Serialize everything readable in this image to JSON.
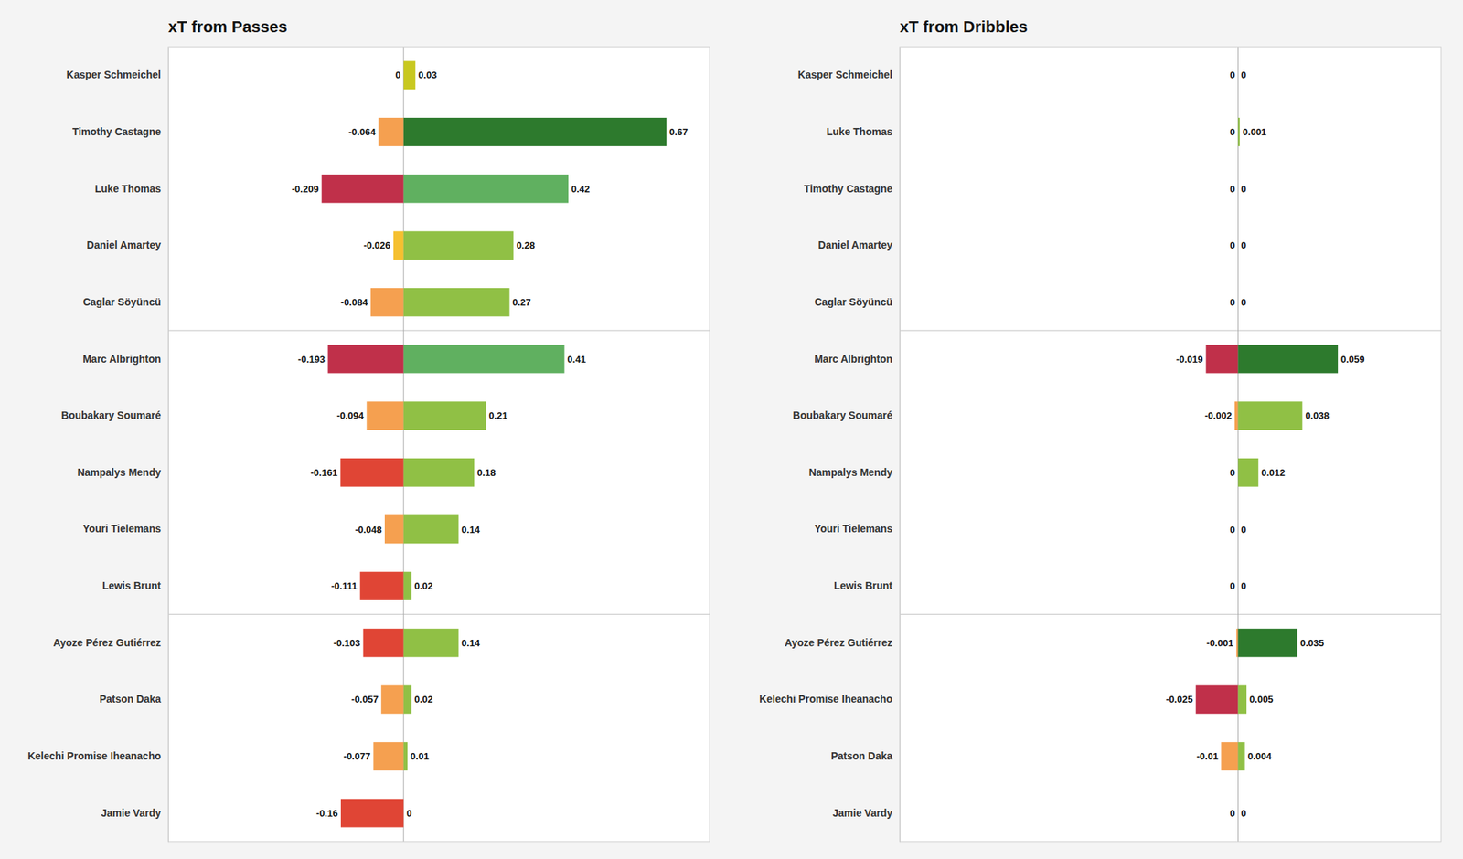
{
  "chart_data": [
    {
      "type": "bar",
      "orientation": "horizontal",
      "stacked": true,
      "data_labels": true,
      "tick_labels": false,
      "title": "xT from Passes",
      "categories": [
        "Kasper Schmeichel",
        "Timothy Castagne",
        "Luke Thomas",
        "Daniel Amartey",
        "Caglar Söyüncü",
        "Marc Albrighton",
        "Boubakary Soumaré",
        "Nampalys Mendy",
        "Youri Tielemans",
        "Lewis Brunt",
        "Ayoze Pérez Gutiérrez",
        "Patson Daka",
        "Kelechi Promise Iheanacho",
        "Jamie Vardy"
      ],
      "series": [
        {
          "values": [
            0.0,
            -0.064,
            -0.209,
            -0.026,
            -0.084,
            -0.193,
            -0.094,
            -0.161,
            -0.048,
            -0.111,
            -0.103,
            -0.057,
            -0.077,
            -0.16
          ],
          "colors": [
            "#c8c800",
            "#f5a050",
            "#c0304a",
            "#f5c030",
            "#f5a050",
            "#c0304a",
            "#f5a050",
            "#e04535",
            "#f5a050",
            "#e04535",
            "#e04535",
            "#f5a050",
            "#f5a050",
            "#e04535"
          ]
        },
        {
          "values": [
            0.03,
            0.67,
            0.42,
            0.28,
            0.27,
            0.41,
            0.21,
            0.18,
            0.14,
            0.02,
            0.14,
            0.02,
            0.01,
            0.0
          ],
          "colors": [
            "#c8c820",
            "#2d7a2d",
            "#60b060",
            "#90c045",
            "#90c045",
            "#60b060",
            "#90c045",
            "#90c045",
            "#90c045",
            "#90c045",
            "#90c045",
            "#90c045",
            "#90c045",
            "#90c045"
          ]
        }
      ],
      "separator_after": [
        4,
        9
      ],
      "xlim": [
        -0.6,
        0.78
      ]
    },
    {
      "type": "bar",
      "orientation": "horizontal",
      "stacked": true,
      "data_labels": true,
      "tick_labels": false,
      "title": "xT from Dribbles",
      "categories": [
        "Kasper Schmeichel",
        "Luke Thomas",
        "Timothy Castagne",
        "Daniel Amartey",
        "Caglar Söyüncü",
        "Marc Albrighton",
        "Boubakary Soumaré",
        "Nampalys Mendy",
        "Youri Tielemans",
        "Lewis Brunt",
        "Ayoze Pérez Gutiérrez",
        "Kelechi Promise Iheanacho",
        "Patson Daka",
        "Jamie Vardy"
      ],
      "series": [
        {
          "values": [
            0.0,
            0.0,
            0.0,
            0.0,
            0.0,
            -0.019,
            -0.002,
            0.0,
            0.0,
            0.0,
            -0.001,
            -0.025,
            -0.01,
            0.0
          ],
          "colors": [
            "#c8c820",
            "#c8c820",
            "#c8c820",
            "#c8c820",
            "#c8c820",
            "#c0304a",
            "#f5a050",
            "#c8c820",
            "#c8c820",
            "#c8c820",
            "#f5a050",
            "#c0304a",
            "#f5a050",
            "#c8c820"
          ]
        },
        {
          "values": [
            0.0,
            0.001,
            0.0,
            0.0,
            0.0,
            0.059,
            0.038,
            0.012,
            0.0,
            0.0,
            0.035,
            0.005,
            0.004,
            0.0
          ],
          "colors": [
            "#c8c820",
            "#90c045",
            "#c8c820",
            "#c8c820",
            "#c8c820",
            "#2d7a2d",
            "#90c045",
            "#90c045",
            "#c8c820",
            "#c8c820",
            "#2d7a2d",
            "#90c045",
            "#90c045",
            "#c8c820"
          ]
        }
      ],
      "separator_after": [
        4,
        9
      ],
      "xlim": [
        -0.2,
        0.12
      ]
    }
  ]
}
